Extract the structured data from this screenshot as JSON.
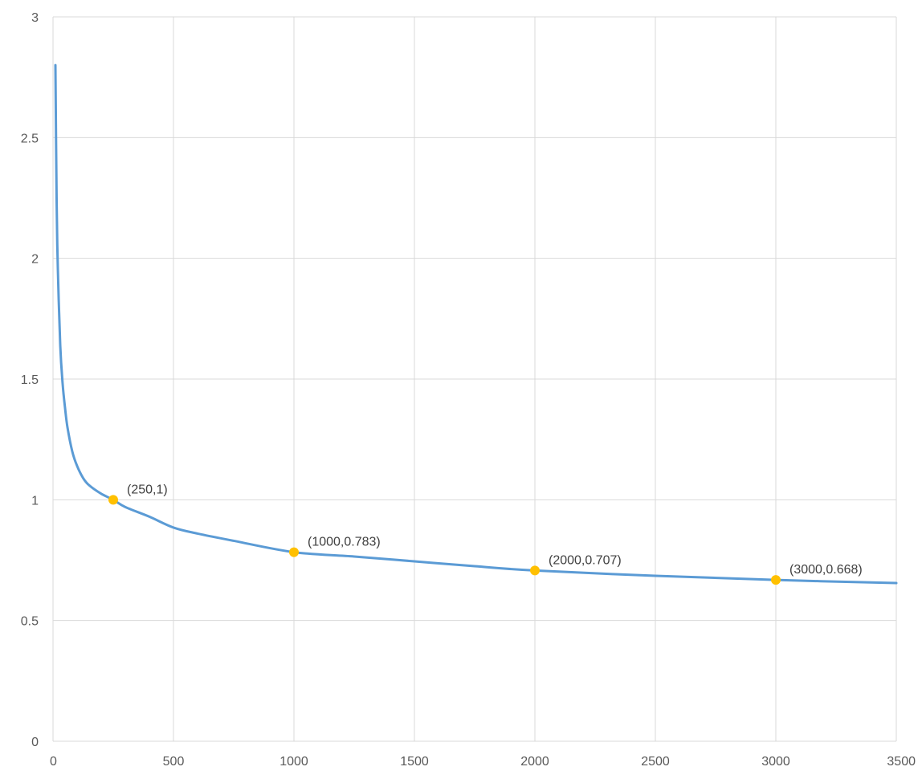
{
  "chart_data": {
    "type": "line",
    "title": "",
    "xlabel": "",
    "ylabel": "",
    "xlim": [
      0,
      3500
    ],
    "ylim": [
      0,
      3
    ],
    "x_ticks": [
      0,
      500,
      1000,
      1500,
      2000,
      2500,
      3000,
      3500
    ],
    "y_ticks": [
      0,
      0.5,
      1,
      1.5,
      2,
      2.5,
      3
    ],
    "grid": true,
    "legend": "none",
    "series": [
      {
        "color": "#5b9bd5",
        "x": [
          10,
          15,
          20,
          30,
          40,
          50,
          60,
          80,
          100,
          125,
          150,
          200,
          250,
          300,
          400,
          500,
          600,
          750,
          1000,
          1250,
          1500,
          1750,
          2000,
          2500,
          3000,
          3500
        ],
        "y": [
          2.8,
          2.24,
          1.96,
          1.64,
          1.48,
          1.38,
          1.3,
          1.2,
          1.14,
          1.09,
          1.06,
          1.025,
          1.0,
          0.97,
          0.93,
          0.885,
          0.86,
          0.83,
          0.783,
          0.765,
          0.745,
          0.725,
          0.707,
          0.685,
          0.668,
          0.655
        ]
      }
    ],
    "points": [
      {
        "x": 250,
        "y": 1,
        "color": "#ffc000",
        "label": "(250,1)"
      },
      {
        "x": 1000,
        "y": 0.783,
        "color": "#ffc000",
        "label": "(1000,0.783)"
      },
      {
        "x": 2000,
        "y": 0.707,
        "color": "#ffc000",
        "label": "(2000,0.707)"
      },
      {
        "x": 3000,
        "y": 0.668,
        "color": "#ffc000",
        "label": "(3000,0.668)"
      }
    ]
  }
}
